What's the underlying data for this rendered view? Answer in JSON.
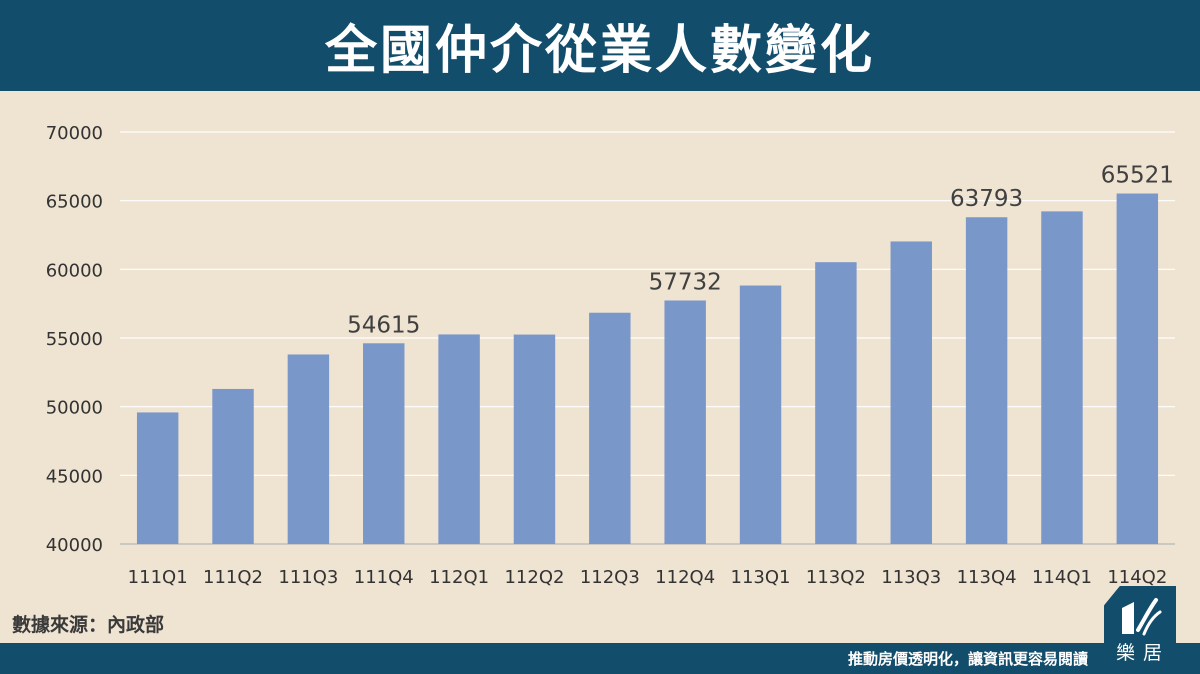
{
  "header": {
    "title": "全國仲介從業人數變化"
  },
  "footer": {
    "source": "數據來源：內政部",
    "slogan": "推動房價透明化，讓資訊更容易閱讀",
    "logo_text": "樂居"
  },
  "colors": {
    "header_bg": "#124d6b",
    "page_bg": "#efe3d2",
    "bar": "#7a97ca",
    "grid": "#ffffff"
  },
  "chart_data": {
    "type": "bar",
    "categories": [
      "111Q1",
      "111Q2",
      "111Q3",
      "111Q4",
      "112Q1",
      "112Q2",
      "112Q3",
      "112Q4",
      "113Q1",
      "113Q2",
      "113Q3",
      "113Q4",
      "114Q1",
      "114Q2"
    ],
    "values": [
      49580,
      51290,
      53800,
      54615,
      55260,
      55250,
      56840,
      57732,
      58820,
      60520,
      62030,
      63793,
      64220,
      65521
    ],
    "data_labels": {
      "3": "54615",
      "7": "57732",
      "11": "63793",
      "13": "65521"
    },
    "ylim": [
      40000,
      70000
    ],
    "yticks": [
      40000,
      45000,
      50000,
      55000,
      60000,
      65000,
      70000
    ],
    "grid": true,
    "legend": "none"
  }
}
